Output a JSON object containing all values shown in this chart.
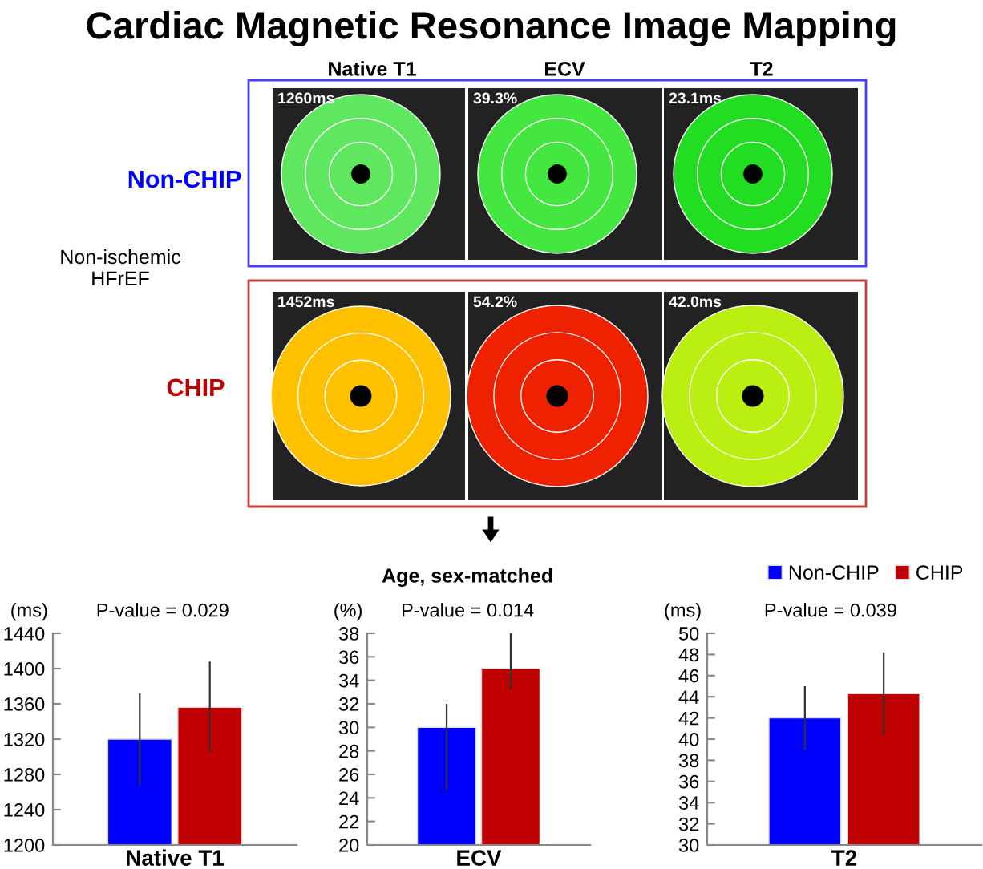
{
  "chart_data": [
    {
      "type": "bar",
      "title": "Cardiac Magnetic Resonance Image Mapping",
      "categories": [
        "Native T1"
      ],
      "ylabel": "(ms)",
      "ylim": [
        1200,
        1440
      ],
      "yticks": [
        1200,
        1240,
        1280,
        1320,
        1360,
        1400,
        1440
      ],
      "series": [
        {
          "color": "#0000ff",
          "values": [
            1320
          ],
          "errors": [
            [
              1268,
              1372
            ]
          ]
        },
        {
          "color": "#c00000",
          "values": [
            1356
          ],
          "errors": [
            [
              1305,
              1408
            ]
          ]
        }
      ],
      "annotations": [
        "P-value = 0.029",
        "Native T1",
        "ECV",
        "T2",
        "Non-CHIP",
        "CHIP",
        "Non-ischemic HFrEF",
        "1260ms",
        "39.3%",
        "23.1ms",
        "1452ms",
        "54.2%",
        "42.0ms"
      ]
    },
    {
      "type": "bar",
      "subtitle": "Age, sex-matched",
      "categories": [
        "ECV"
      ],
      "ylabel": "(%)",
      "ylim": [
        20,
        38
      ],
      "yticks": [
        20,
        22,
        24,
        26,
        28,
        30,
        32,
        34,
        36,
        38
      ],
      "series": [
        {
          "color": "#0000ff",
          "values": [
            30.0
          ],
          "errors": [
            [
              24.7,
              32.0
            ]
          ]
        },
        {
          "color": "#c00000",
          "values": [
            35.0
          ],
          "errors": [
            [
              33.2,
              38.0
            ]
          ]
        }
      ],
      "annotations": [
        "P-value = 0.014"
      ]
    },
    {
      "type": "bar",
      "categories": [
        "T2"
      ],
      "ylabel": "(ms)",
      "ylim": [
        30,
        50
      ],
      "yticks": [
        30,
        32,
        34,
        36,
        38,
        40,
        42,
        44,
        46,
        48,
        50
      ],
      "legend": "top right",
      "series": [
        {
          "name": "Non-CHIP",
          "color": "#0000ff",
          "values": [
            42.0
          ],
          "errors": [
            [
              39.0,
              45.0
            ]
          ]
        },
        {
          "name": "CHIP",
          "color": "#c00000",
          "values": [
            44.3
          ],
          "errors": [
            [
              40.4,
              48.2
            ]
          ]
        }
      ],
      "annotations": [
        "P-value = 0.039"
      ]
    }
  ]
}
